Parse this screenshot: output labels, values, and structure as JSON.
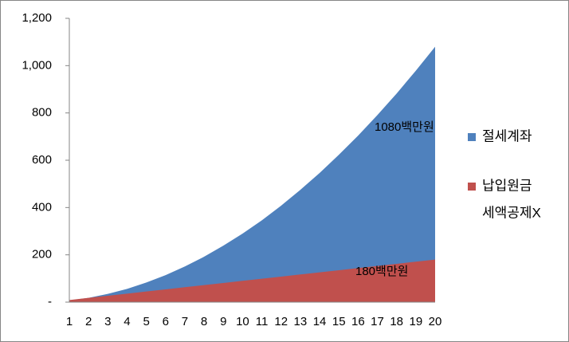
{
  "chart_data": {
    "type": "area",
    "categories": [
      1,
      2,
      3,
      4,
      5,
      6,
      7,
      8,
      9,
      10,
      11,
      12,
      13,
      14,
      15,
      16,
      17,
      18,
      19,
      20
    ],
    "series": [
      {
        "name": "절세계좌",
        "color": "#4f81bd",
        "values": [
          7,
          18,
          35,
          56,
          83,
          114,
          151,
          192,
          239,
          290,
          346,
          408,
          475,
          546,
          623,
          704,
          791,
          882,
          979,
          1080
        ]
      },
      {
        "name": "납입원금",
        "color": "#c0504d",
        "values": [
          9,
          18,
          27,
          36,
          45,
          54,
          63,
          72,
          81,
          90,
          99,
          108,
          117,
          126,
          135,
          144,
          153,
          162,
          171,
          180
        ]
      }
    ],
    "legend_note": "세액공제X",
    "annotations": [
      {
        "text": "1080백만원"
      },
      {
        "text": "180백만원"
      }
    ],
    "ylim": [
      0,
      1200
    ],
    "yticks": [
      {
        "value": 0,
        "label": "-"
      },
      200,
      400,
      600,
      800,
      {
        "value": 1000,
        "label": "1,000"
      },
      {
        "value": 1200,
        "label": "1,200"
      }
    ],
    "legend": "right"
  }
}
